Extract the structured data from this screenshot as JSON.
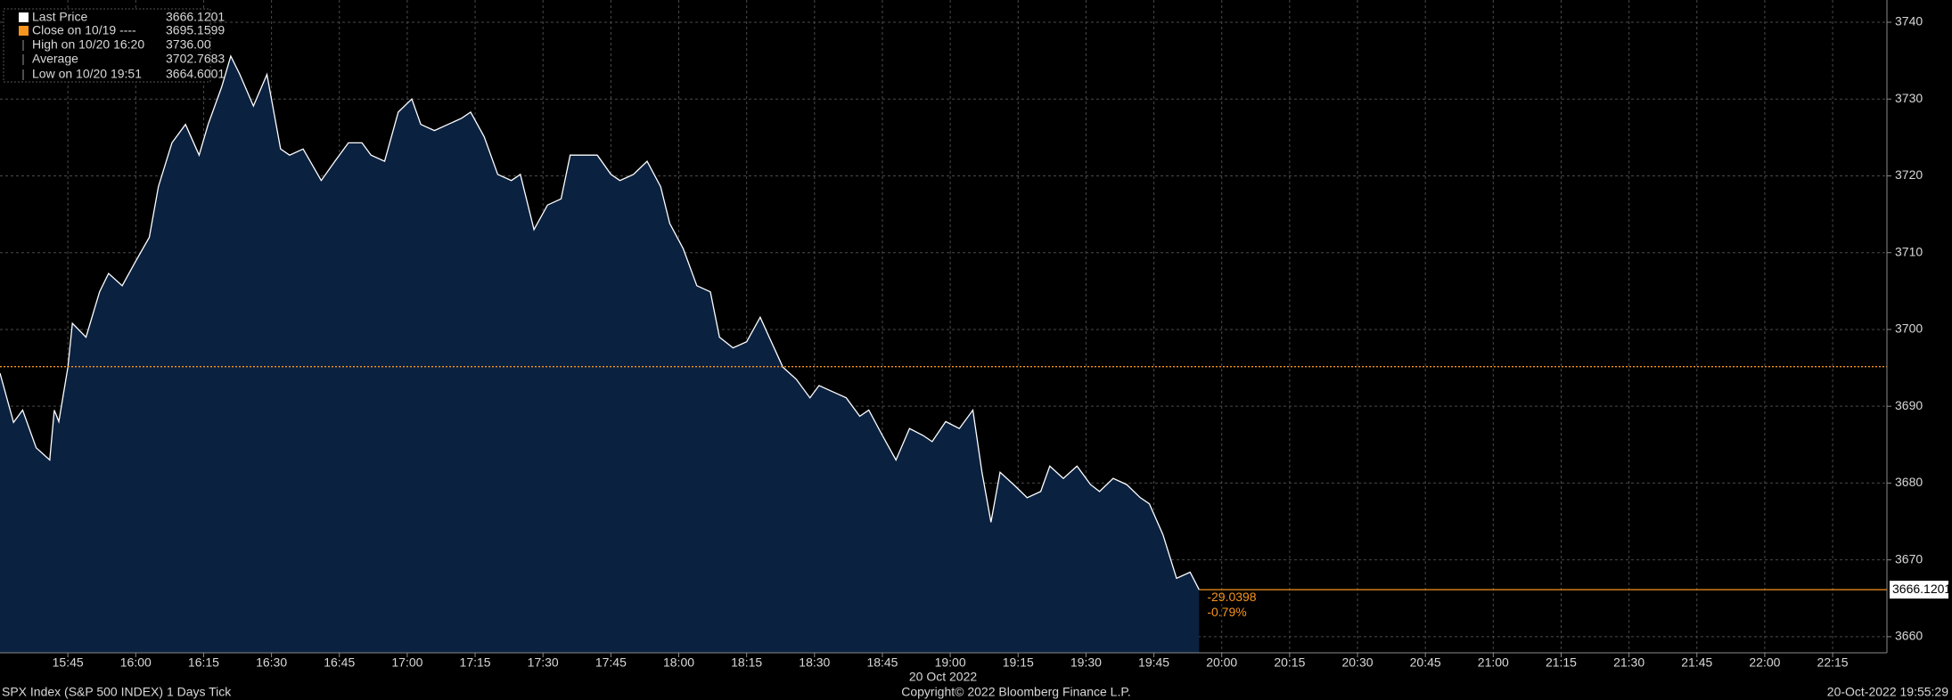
{
  "chart_data": {
    "type": "area",
    "x": [
      "15:30",
      "15:33",
      "15:35",
      "15:38",
      "15:41",
      "15:42",
      "15:43",
      "15:45",
      "15:46",
      "15:49",
      "15:52",
      "15:54",
      "15:57",
      "16:00",
      "16:03",
      "16:05",
      "16:08",
      "16:11",
      "16:14",
      "16:16",
      "16:19",
      "16:21",
      "16:23",
      "16:26",
      "16:29",
      "16:32",
      "16:34",
      "16:37",
      "16:41",
      "16:44",
      "16:47",
      "16:50",
      "16:52",
      "16:55",
      "16:58",
      "17:01",
      "17:03",
      "17:06",
      "17:09",
      "17:12",
      "17:14",
      "17:17",
      "17:20",
      "17:23",
      "17:25",
      "17:28",
      "17:31",
      "17:34",
      "17:36",
      "17:39",
      "17:42",
      "17:45",
      "17:47",
      "17:50",
      "17:53",
      "17:56",
      "17:58",
      "18:01",
      "18:04",
      "18:07",
      "18:09",
      "18:12",
      "18:15",
      "18:18",
      "18:20",
      "18:23",
      "18:26",
      "18:29",
      "18:31",
      "18:34",
      "18:37",
      "18:40",
      "18:42",
      "18:45",
      "18:48",
      "18:51",
      "18:54",
      "18:56",
      "18:59",
      "19:02",
      "19:05",
      "19:07",
      "19:09",
      "19:11",
      "19:14",
      "19:17",
      "19:20",
      "19:22",
      "19:25",
      "19:28",
      "19:31",
      "19:33",
      "19:36",
      "19:39",
      "19:42",
      "19:44",
      "19:47",
      "19:50",
      "19:53",
      "19:55"
    ],
    "series": [
      {
        "name": "Last Price",
        "color": "#ffffff",
        "fill": "#0b2140",
        "values": [
          3694.3,
          3687.9,
          3689.5,
          3684.6,
          3683,
          3689.5,
          3688,
          3695.1,
          3700.8,
          3699,
          3704.9,
          3707.3,
          3705.7,
          3708.9,
          3712,
          3718.6,
          3724.3,
          3726.7,
          3722.7,
          3726.7,
          3731.6,
          3735.6,
          3733.2,
          3729.1,
          3733.2,
          3723.5,
          3722.7,
          3723.5,
          3719.4,
          3721.9,
          3724.3,
          3724.3,
          3722.7,
          3721.9,
          3728.3,
          3730,
          3726.7,
          3725.9,
          3726.7,
          3727.5,
          3728.3,
          3725.1,
          3720.2,
          3719.4,
          3720.2,
          3713,
          3716.2,
          3717,
          3722.7,
          3722.7,
          3722.7,
          3720.2,
          3719.4,
          3720.2,
          3721.9,
          3718.6,
          3713.8,
          3710.5,
          3705.7,
          3704.9,
          3699,
          3697.6,
          3698.4,
          3701.6,
          3699,
          3695.1,
          3693.5,
          3691.1,
          3692.7,
          3691.9,
          3691.1,
          3688.7,
          3689.5,
          3686.2,
          3683,
          3687.1,
          3686.2,
          3685.4,
          3688,
          3687.1,
          3689.5,
          3681.4,
          3674.9,
          3681.4,
          3679.8,
          3678.1,
          3678.9,
          3682.2,
          3680.6,
          3682.2,
          3679.8,
          3678.9,
          3680.6,
          3679.8,
          3678.1,
          3677.3,
          3673.3,
          3667.6,
          3668.4,
          3666.1201
        ]
      }
    ],
    "stats": [
      {
        "value": 3666.1201,
        "color": "#ffffff"
      },
      {
        "label": "Close on 10/19 ----",
        "value": 3695.1599,
        "color": "#f7941d"
      },
      {
        "label": "High on 10/20 16:20",
        "value": {
          "value": 3736,
          "label": "3736.00"
        }
      },
      {
        "label": "Average",
        "value": 3702.7683
      },
      {
        "label": "Low on 10/20 19:51",
        "value": 3664.6001
      }
    ],
    "change": -29.0398,
    "change_pct": {
      "value": -0.79,
      "label": "-0.79%"
    },
    "xlim": [
      "15:30",
      "22:27"
    ],
    "xticks": [
      "15:45",
      "16:00",
      "16:15",
      "16:30",
      "16:45",
      "17:00",
      "17:15",
      "17:30",
      "17:45",
      "18:00",
      "18:15",
      "18:30",
      "18:45",
      "19:00",
      "19:15",
      "19:30",
      "19:45",
      "20:00",
      "20:15",
      "20:30",
      "20:45",
      "21:00",
      "21:15",
      "21:30",
      "21:45",
      "22:00",
      "22:15"
    ],
    "xlabel": "20 Oct 2022",
    "ylim": [
      3657.9,
      3742.9
    ],
    "yticks": [
      3660,
      3670,
      3680,
      3690,
      3700,
      3710,
      3720,
      3730,
      3740
    ],
    "grid": true,
    "footer_left": "SPX Index (S&P 500 INDEX) 1 Days  Tick",
    "footer_center": "Copyright© 2022 Bloomberg Finance L.P.",
    "footer_right": "20-Oct-2022 19:55:29"
  }
}
